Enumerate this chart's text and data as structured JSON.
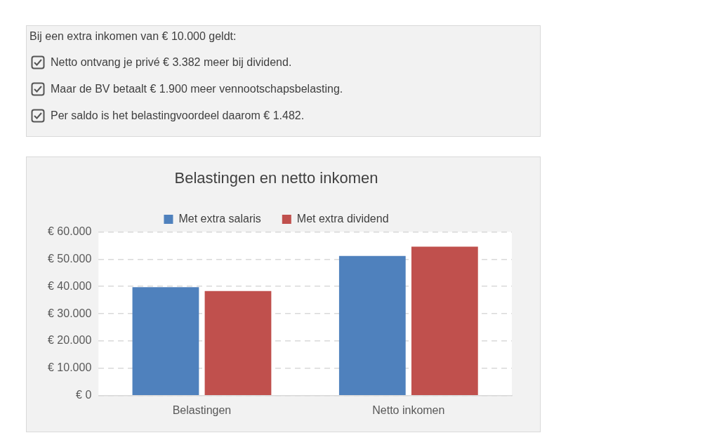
{
  "chart_data": [
    {
      "type": "other",
      "title": "Bij een extra inkomen van € 10.000 geldt:",
      "annotations": [
        "Netto ontvang je privé € 3.382 meer bij dividend.",
        "Maar de BV betaalt € 1.900 meer vennootschapsbelasting.",
        "Per saldo is het belastingvoordeel daarom € 1.482."
      ]
    },
    {
      "type": "bar",
      "title": "Belastingen en netto inkomen",
      "categories": [
        "Belastingen",
        "Netto inkomen"
      ],
      "series": [
        {
          "name": "Met extra salaris",
          "color": "#4f81bd",
          "values": [
            39700,
            51200
          ]
        },
        {
          "name": "Met extra dividend",
          "color": "#c0504d",
          "values": [
            38300,
            54600
          ]
        }
      ],
      "ylim": [
        0,
        60000
      ],
      "yticks": [
        {
          "value": 0,
          "label": "€ 0"
        },
        {
          "value": 10000,
          "label": "€ 10.000"
        },
        {
          "value": 20000,
          "label": "€ 20.000"
        },
        {
          "value": 30000,
          "label": "€ 30.000"
        },
        {
          "value": 40000,
          "label": "€ 40.000"
        },
        {
          "value": 50000,
          "label": "€ 50.000"
        },
        {
          "value": 60000,
          "label": "€ 60.000"
        }
      ],
      "grid": "y",
      "legend": "top"
    }
  ]
}
